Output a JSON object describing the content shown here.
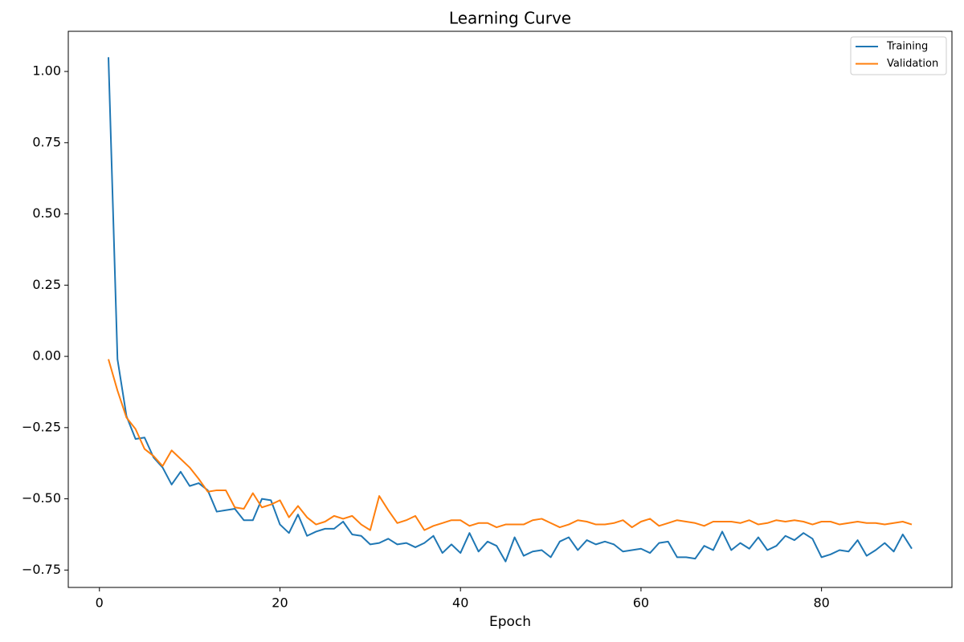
{
  "chart_data": {
    "type": "line",
    "title": "Learning Curve",
    "x_label": "Epoch",
    "x": [
      1,
      2,
      3,
      4,
      5,
      6,
      7,
      8,
      9,
      10,
      11,
      12,
      13,
      14,
      15,
      16,
      17,
      18,
      19,
      20,
      21,
      22,
      23,
      24,
      25,
      26,
      27,
      28,
      29,
      30,
      31,
      32,
      33,
      34,
      35,
      36,
      37,
      38,
      39,
      40,
      41,
      42,
      43,
      44,
      45,
      46,
      47,
      48,
      49,
      50,
      51,
      52,
      53,
      54,
      55,
      56,
      57,
      58,
      59,
      60,
      61,
      62,
      63,
      64,
      65,
      66,
      67,
      68,
      69,
      70,
      71,
      72,
      73,
      74,
      75,
      76,
      77,
      78,
      79,
      80,
      81,
      82,
      83,
      84,
      85,
      86,
      87,
      88,
      89,
      90
    ],
    "series": [
      {
        "name": "Training",
        "color": "#1f77b4",
        "values": [
          1.05,
          -0.01,
          -0.21,
          -0.29,
          -0.285,
          -0.355,
          -0.39,
          -0.45,
          -0.405,
          -0.455,
          -0.445,
          -0.47,
          -0.545,
          -0.54,
          -0.535,
          -0.575,
          -0.575,
          -0.5,
          -0.505,
          -0.59,
          -0.62,
          -0.555,
          -0.63,
          -0.615,
          -0.605,
          -0.605,
          -0.58,
          -0.625,
          -0.63,
          -0.66,
          -0.655,
          -0.64,
          -0.66,
          -0.655,
          -0.67,
          -0.655,
          -0.63,
          -0.69,
          -0.66,
          -0.69,
          -0.62,
          -0.685,
          -0.65,
          -0.665,
          -0.72,
          -0.635,
          -0.7,
          -0.685,
          -0.68,
          -0.705,
          -0.65,
          -0.635,
          -0.68,
          -0.645,
          -0.66,
          -0.65,
          -0.66,
          -0.685,
          -0.68,
          -0.675,
          -0.69,
          -0.655,
          -0.65,
          -0.705,
          -0.705,
          -0.71,
          -0.665,
          -0.68,
          -0.615,
          -0.68,
          -0.655,
          -0.675,
          -0.635,
          -0.68,
          -0.665,
          -0.63,
          -0.645,
          -0.62,
          -0.64,
          -0.705,
          -0.695,
          -0.68,
          -0.685,
          -0.645,
          -0.7,
          -0.68,
          -0.655,
          -0.685,
          -0.625,
          -0.675
        ]
      },
      {
        "name": "Validation",
        "color": "#ff7f0e",
        "values": [
          -0.01,
          -0.12,
          -0.215,
          -0.255,
          -0.325,
          -0.35,
          -0.385,
          -0.33,
          -0.36,
          -0.39,
          -0.43,
          -0.475,
          -0.47,
          -0.47,
          -0.53,
          -0.535,
          -0.48,
          -0.53,
          -0.52,
          -0.505,
          -0.565,
          -0.525,
          -0.565,
          -0.59,
          -0.58,
          -0.56,
          -0.57,
          -0.56,
          -0.59,
          -0.61,
          -0.49,
          -0.54,
          -0.585,
          -0.575,
          -0.56,
          -0.61,
          -0.595,
          -0.585,
          -0.575,
          -0.575,
          -0.595,
          -0.585,
          -0.585,
          -0.6,
          -0.59,
          -0.59,
          -0.59,
          -0.575,
          -0.57,
          -0.585,
          -0.6,
          -0.59,
          -0.575,
          -0.58,
          -0.59,
          -0.59,
          -0.585,
          -0.575,
          -0.6,
          -0.58,
          -0.57,
          -0.595,
          -0.585,
          -0.575,
          -0.58,
          -0.585,
          -0.595,
          -0.58,
          -0.58,
          -0.58,
          -0.585,
          -0.575,
          -0.59,
          -0.585,
          -0.575,
          -0.58,
          -0.575,
          -0.58,
          -0.59,
          -0.58,
          -0.58,
          -0.59,
          -0.585,
          -0.58,
          -0.585,
          -0.585,
          -0.59,
          -0.585,
          -0.58,
          -0.59
        ]
      }
    ],
    "xlim": [
      -3.45,
      94.45
    ],
    "xticks": [
      0,
      20,
      40,
      60,
      80
    ],
    "ylim": [
      -0.811,
      1.141
    ],
    "yticks": [
      {
        "value": -0.75,
        "label": "−0.75"
      },
      {
        "value": -0.5,
        "label": "−0.50"
      },
      {
        "value": -0.25,
        "label": "−0.25"
      },
      {
        "value": 0,
        "label": "0.00"
      },
      {
        "value": 0.25,
        "label": "0.25"
      },
      {
        "value": 0.5,
        "label": "0.50"
      },
      {
        "value": 0.75,
        "label": "0.75"
      },
      {
        "value": 1,
        "label": "1.00"
      }
    ],
    "grid": false,
    "legend": "upper right"
  }
}
